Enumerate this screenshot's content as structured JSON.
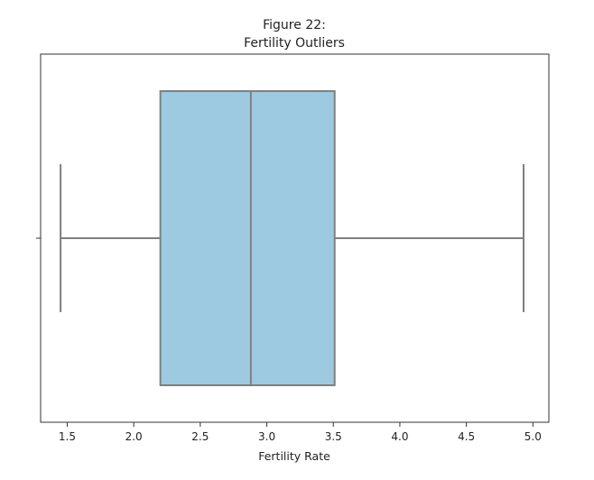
{
  "chart_data": {
    "type": "box",
    "title_line1": "Figure 22:",
    "title_line2": "Fertility Outliers",
    "xlabel": "Fertility Rate",
    "ylabel": "",
    "orientation": "horizontal",
    "xlim": [
      1.3,
      5.12
    ],
    "xticks": [
      1.5,
      2.0,
      2.5,
      3.0,
      3.5,
      4.0,
      4.5,
      5.0
    ],
    "xtick_labels": [
      "1.5",
      "2.0",
      "2.5",
      "3.0",
      "3.5",
      "4.0",
      "4.5",
      "5.0"
    ],
    "box": {
      "min": 1.45,
      "q1": 2.2,
      "median": 2.88,
      "q3": 3.51,
      "max": 4.93
    },
    "outliers": [],
    "colors": {
      "box_fill": "#9ecae1",
      "box_edge": "#7f7f7f",
      "frame": "#333333",
      "text": "#222222"
    }
  }
}
